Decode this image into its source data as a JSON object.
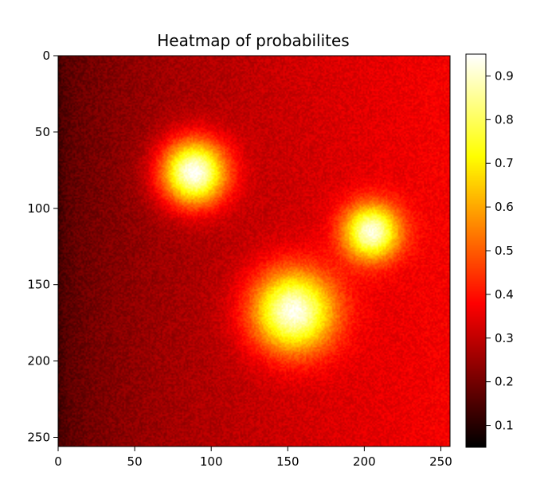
{
  "chart_data": {
    "type": "heatmap",
    "title": "Heatmap of probabilites",
    "xlabel": "",
    "ylabel": "",
    "size": [
      256,
      256
    ],
    "xlim": [
      0,
      256
    ],
    "ylim": [
      256,
      0
    ],
    "x_ticks": [
      0,
      50,
      100,
      150,
      200,
      250
    ],
    "y_ticks": [
      0,
      50,
      100,
      150,
      200,
      250
    ],
    "colormap": "hot",
    "colorbar": {
      "vmin": 0.05,
      "vmax": 0.95,
      "ticks": [
        0.1,
        0.2,
        0.3,
        0.4,
        0.5,
        0.6,
        0.7,
        0.8,
        0.9
      ]
    },
    "background": {
      "left_value": 0.13,
      "right_value": 0.37
    },
    "noise_amplitude": 0.035,
    "blobs": [
      {
        "cx": 88,
        "cy": 76,
        "sigma": 15,
        "amplitude": 0.68
      },
      {
        "cx": 204,
        "cy": 115,
        "sigma": 13,
        "amplitude": 0.58
      },
      {
        "cx": 153,
        "cy": 167,
        "sigma": 19,
        "amplitude": 0.62
      }
    ]
  }
}
